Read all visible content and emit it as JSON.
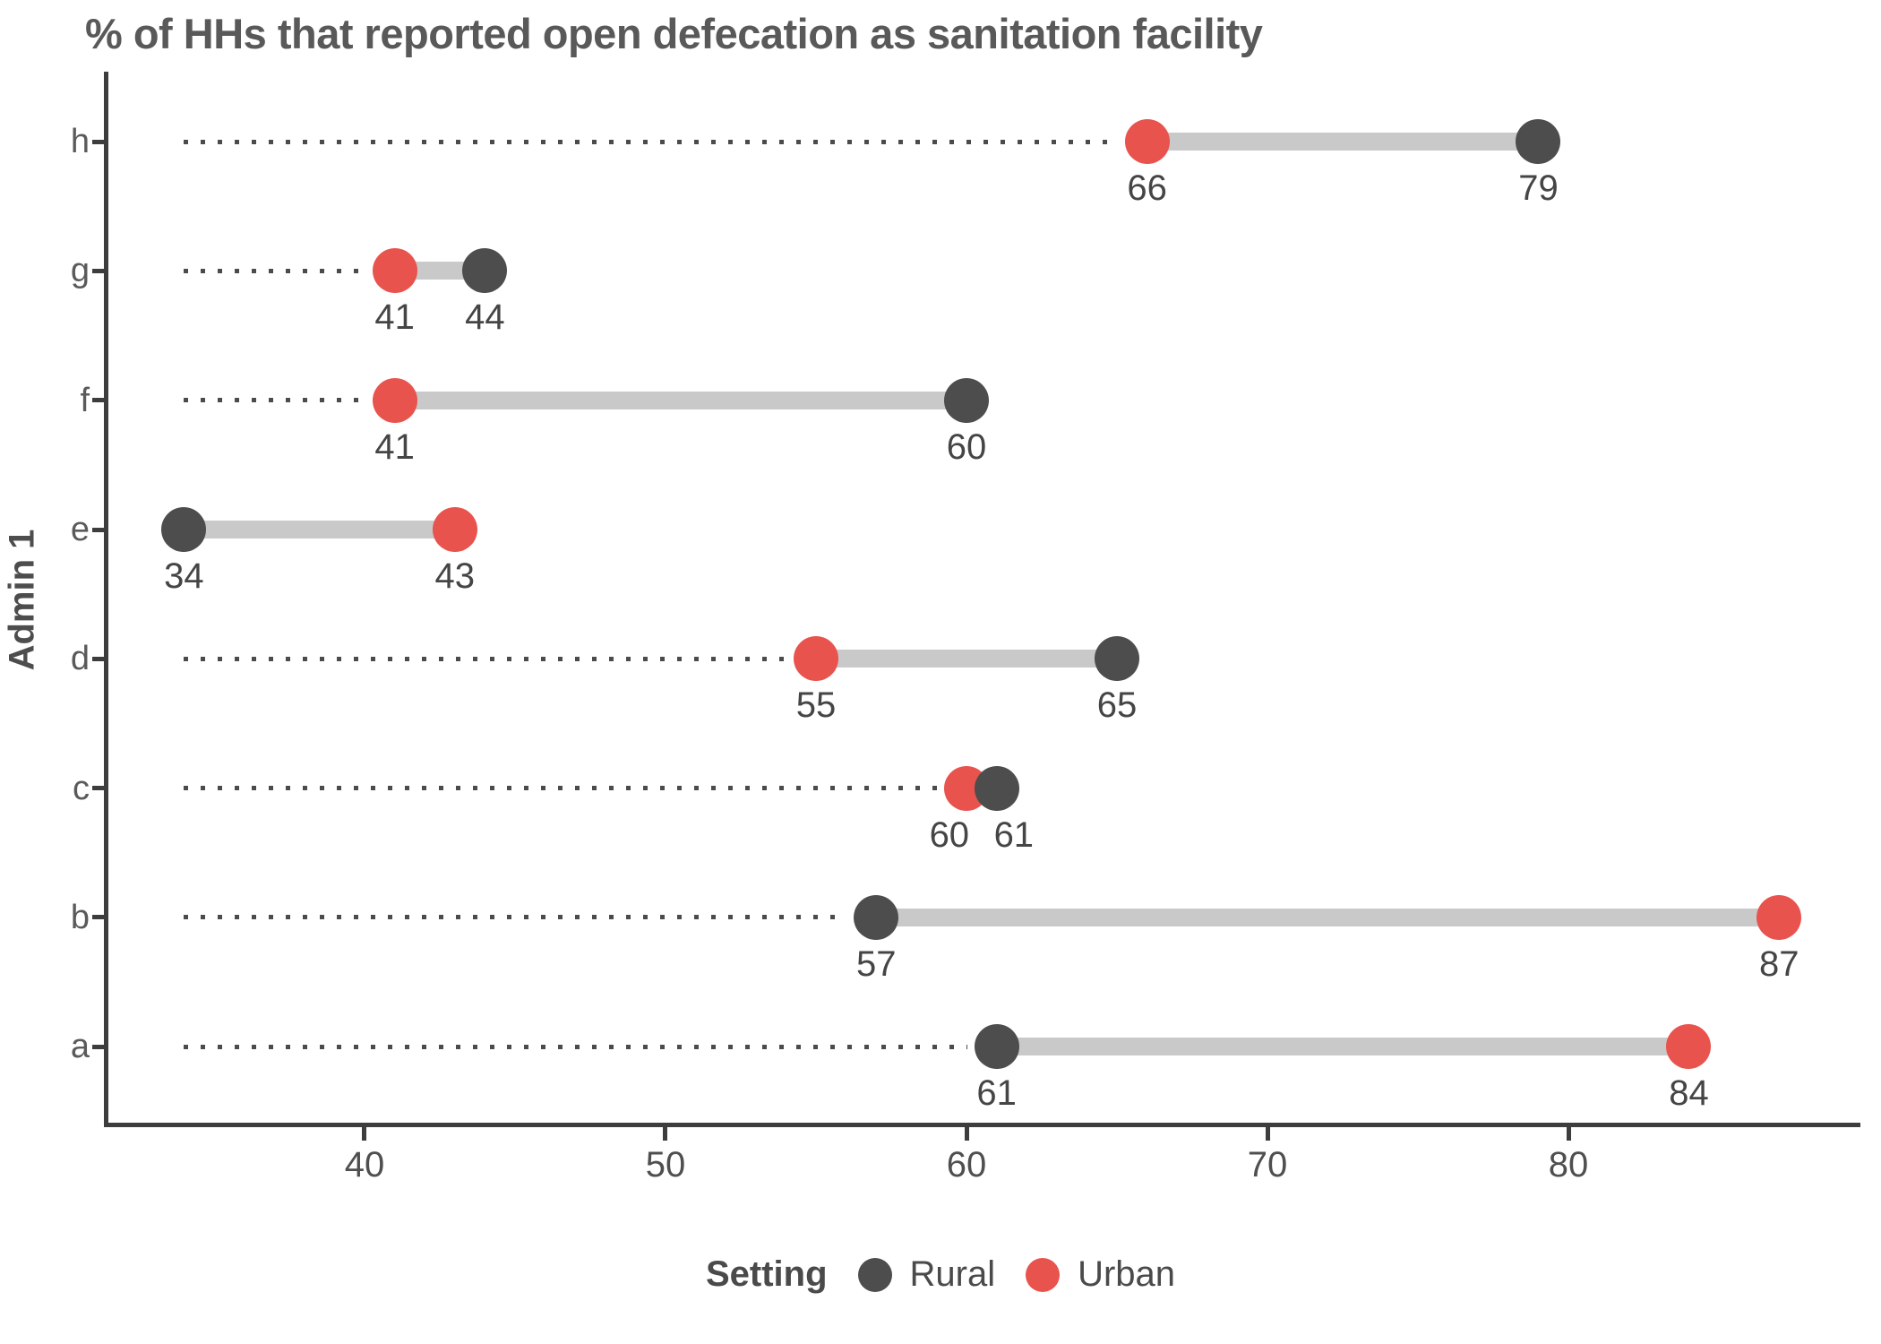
{
  "chart_data": {
    "type": "dumbbell",
    "title": "% of HHs that reported open defecation as sanitation facility",
    "xlabel": "",
    "ylabel": "Admin 1",
    "x_ticks": [
      40,
      50,
      60,
      70,
      80
    ],
    "x_range": [
      31.4,
      89.7
    ],
    "guide_start": 34,
    "grid": false,
    "categories": [
      "h",
      "g",
      "f",
      "e",
      "d",
      "c",
      "b",
      "a"
    ],
    "series": [
      {
        "name": "Rural",
        "color": "#4d4d4d",
        "values": [
          79,
          44,
          60,
          34,
          65,
          61,
          57,
          61
        ]
      },
      {
        "name": "Urban",
        "color": "#e8534e",
        "values": [
          66,
          41,
          41,
          43,
          55,
          60,
          87,
          84
        ]
      }
    ],
    "legend": {
      "title": "Setting",
      "position": "bottom",
      "entries": [
        {
          "label": "Rural",
          "color": "#4d4d4d"
        },
        {
          "label": "Urban",
          "color": "#e8534e"
        }
      ]
    }
  },
  "colors": {
    "rural": "#4d4d4d",
    "urban": "#e8534e",
    "bar": "#c9c9c9",
    "axis": "#3d3d3d",
    "title_text": "#595959",
    "background": "#ffffff"
  }
}
